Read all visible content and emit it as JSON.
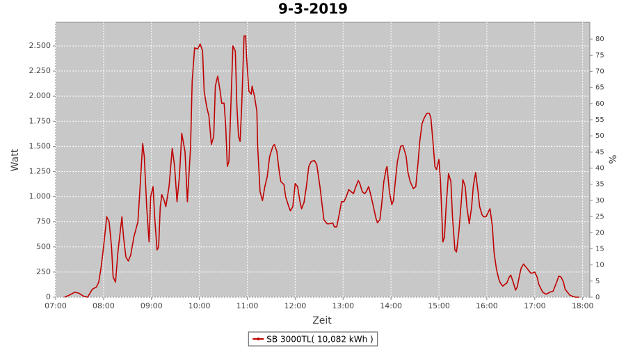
{
  "chart_data": {
    "type": "line",
    "title": "9-3-2019",
    "x_label": "Zeit",
    "y_label": "Watt",
    "y2_label": "%",
    "x": [
      "07:11",
      "07:17",
      "07:24",
      "07:29",
      "07:35",
      "07:40",
      "07:46",
      "07:51",
      "07:54",
      "07:57",
      "08:00",
      "08:04",
      "08:07",
      "08:10",
      "08:12",
      "08:15",
      "08:18",
      "08:23",
      "08:25",
      "08:28",
      "08:31",
      "08:34",
      "08:38",
      "08:43",
      "08:45",
      "08:49",
      "08:51",
      "08:54",
      "08:57",
      "08:59",
      "09:02",
      "09:04",
      "09:07",
      "09:09",
      "09:11",
      "09:13",
      "09:16",
      "09:18",
      "09:22",
      "09:26",
      "09:29",
      "09:32",
      "09:35",
      "09:38",
      "09:42",
      "09:45",
      "09:49",
      "09:51",
      "09:54",
      "09:58",
      "10:01",
      "10:04",
      "10:06",
      "10:09",
      "10:12",
      "10:15",
      "10:18",
      "10:20",
      "10:23",
      "10:26",
      "10:28",
      "10:31",
      "10:33",
      "10:35",
      "10:37",
      "10:39",
      "10:42",
      "10:45",
      "10:47",
      "10:49",
      "10:51",
      "10:53",
      "10:56",
      "10:58",
      "10:59",
      "11:02",
      "11:05",
      "11:06",
      "11:09",
      "11:12",
      "11:13",
      "11:16",
      "11:19",
      "11:22",
      "11:25",
      "11:28",
      "11:32",
      "11:34",
      "11:37",
      "11:40",
      "11:42",
      "11:46",
      "11:48",
      "11:52",
      "11:54",
      "11:57",
      "12:00",
      "12:03",
      "12:06",
      "12:08",
      "12:11",
      "12:14",
      "12:17",
      "12:20",
      "12:24",
      "12:27",
      "12:31",
      "12:34",
      "12:36",
      "12:40",
      "12:43",
      "12:47",
      "12:49",
      "12:52",
      "12:55",
      "12:58",
      "13:01",
      "13:04",
      "13:07",
      "13:10",
      "13:13",
      "13:16",
      "13:19",
      "13:21",
      "13:24",
      "13:27",
      "13:29",
      "13:32",
      "13:34",
      "13:38",
      "13:41",
      "13:43",
      "13:46",
      "13:48",
      "13:51",
      "13:54",
      "13:55",
      "13:58",
      "14:01",
      "14:03",
      "14:06",
      "14:08",
      "14:12",
      "14:15",
      "14:19",
      "14:21",
      "14:24",
      "14:28",
      "14:31",
      "14:34",
      "14:36",
      "14:39",
      "14:42",
      "14:45",
      "14:48",
      "14:50",
      "14:53",
      "14:55",
      "14:57",
      "15:00",
      "15:02",
      "15:05",
      "15:07",
      "15:09",
      "15:12",
      "15:15",
      "15:17",
      "15:20",
      "15:22",
      "15:25",
      "15:28",
      "15:30",
      "15:33",
      "15:35",
      "15:38",
      "15:41",
      "15:43",
      "15:46",
      "15:49",
      "15:51",
      "15:54",
      "15:56",
      "15:59",
      "16:02",
      "16:04",
      "16:07",
      "16:09",
      "16:12",
      "16:15",
      "16:17",
      "16:20",
      "16:23",
      "16:25",
      "16:28",
      "16:30",
      "16:33",
      "16:36",
      "16:38",
      "16:41",
      "16:43",
      "16:46",
      "16:49",
      "16:52",
      "16:55",
      "16:57",
      "17:00",
      "17:03",
      "17:05",
      "17:08",
      "17:10",
      "17:14",
      "17:17",
      "17:19",
      "17:23",
      "17:25",
      "17:28",
      "17:30",
      "17:33",
      "17:36",
      "17:38",
      "17:42",
      "17:44",
      "17:47",
      "17:51",
      "17:56"
    ],
    "series": [
      {
        "name": "SB 3000TL( 10,082 kWh )",
        "color": "#c00000",
        "values": [
          0,
          20,
          50,
          40,
          10,
          0,
          80,
          100,
          150,
          300,
          500,
          800,
          750,
          500,
          200,
          150,
          450,
          800,
          600,
          400,
          360,
          420,
          600,
          750,
          1000,
          1530,
          1400,
          900,
          550,
          1000,
          1100,
          800,
          470,
          500,
          900,
          1020,
          960,
          900,
          1100,
          1480,
          1300,
          950,
          1200,
          1630,
          1450,
          950,
          1500,
          2150,
          2480,
          2470,
          2520,
          2450,
          2050,
          1900,
          1800,
          1520,
          1600,
          2100,
          2200,
          2050,
          1930,
          1930,
          1700,
          1300,
          1350,
          1800,
          2500,
          2450,
          1900,
          1600,
          1550,
          1900,
          2600,
          2600,
          2400,
          2050,
          2020,
          2100,
          2000,
          1850,
          1500,
          1050,
          960,
          1100,
          1200,
          1400,
          1500,
          1520,
          1450,
          1250,
          1150,
          1120,
          1000,
          900,
          860,
          900,
          1130,
          1100,
          950,
          880,
          940,
          1100,
          1300,
          1350,
          1360,
          1320,
          1100,
          900,
          770,
          730,
          730,
          740,
          700,
          700,
          820,
          950,
          950,
          1000,
          1070,
          1050,
          1030,
          1100,
          1160,
          1130,
          1050,
          1030,
          1050,
          1100,
          1040,
          900,
          790,
          740,
          770,
          900,
          1150,
          1280,
          1300,
          1050,
          920,
          960,
          1200,
          1350,
          1500,
          1510,
          1400,
          1250,
          1150,
          1080,
          1100,
          1350,
          1550,
          1730,
          1790,
          1830,
          1830,
          1780,
          1500,
          1300,
          1270,
          1370,
          1150,
          550,
          600,
          900,
          1230,
          1150,
          800,
          470,
          450,
          650,
          950,
          1170,
          1100,
          900,
          730,
          900,
          1100,
          1240,
          1050,
          900,
          820,
          800,
          800,
          850,
          880,
          700,
          450,
          280,
          180,
          140,
          110,
          130,
          140,
          200,
          220,
          150,
          70,
          100,
          220,
          290,
          330,
          300,
          270,
          240,
          240,
          250,
          200,
          130,
          80,
          50,
          30,
          40,
          50,
          60,
          100,
          160,
          210,
          200,
          150,
          80,
          40,
          20,
          10,
          0,
          0
        ]
      }
    ],
    "xlim": [
      "07:00",
      "18:09"
    ],
    "xticks": [
      "07:00",
      "08:00",
      "09:00",
      "10:00",
      "11:00",
      "12:00",
      "13:00",
      "14:00",
      "15:00",
      "16:00",
      "17:00",
      "18:00"
    ],
    "ylim": [
      0,
      2735
    ],
    "yticks": [
      0,
      250,
      500,
      750,
      {
        "value": 1000,
        "label": "1.000"
      },
      {
        "value": 1250,
        "label": "1.250"
      },
      {
        "value": 1500,
        "label": "1.500"
      },
      {
        "value": 1750,
        "label": "1.750"
      },
      {
        "value": 2000,
        "label": "2.000"
      },
      {
        "value": 2250,
        "label": "2.250"
      },
      {
        "value": 2500,
        "label": "2.500"
      }
    ],
    "y2lim": [
      0,
      85.2
    ],
    "y2ticks": [
      0,
      5,
      10,
      15,
      20,
      25,
      30,
      35,
      40,
      45,
      50,
      55,
      60,
      65,
      70,
      75,
      80
    ],
    "grid": true,
    "legend": "bottom",
    "background": "#c8c8c8"
  }
}
